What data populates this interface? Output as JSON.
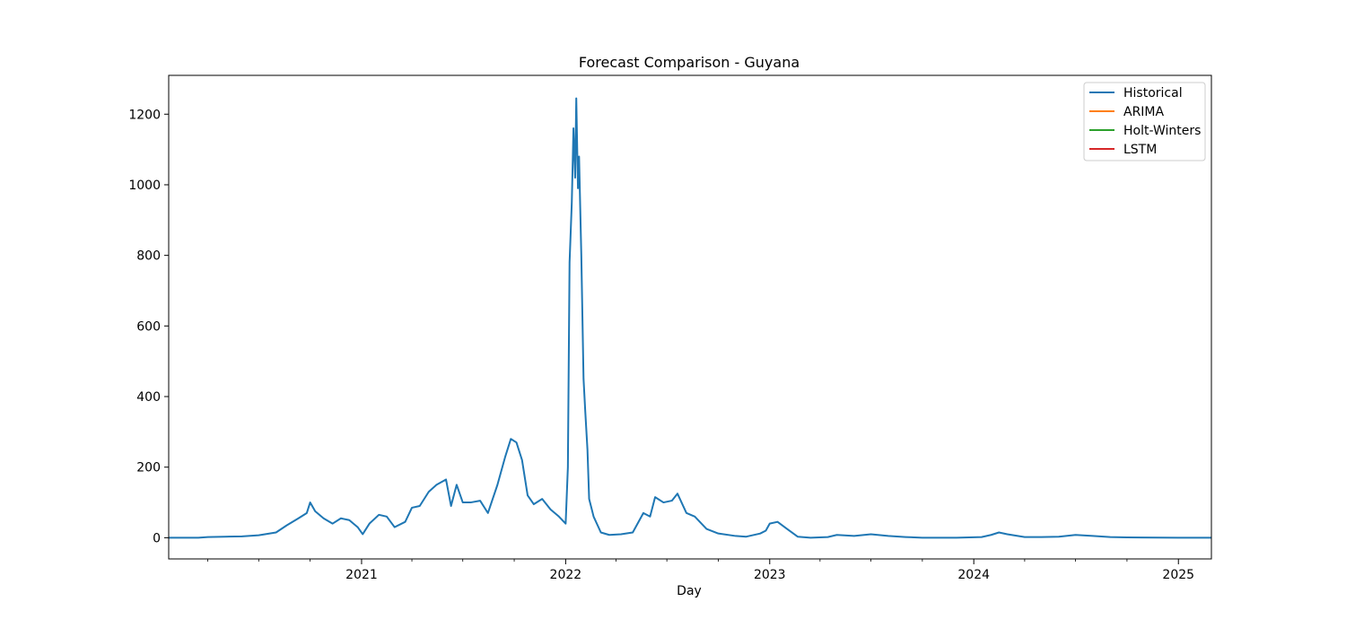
{
  "chart_data": {
    "type": "line",
    "title": "Forecast Comparison - Guyana",
    "xlabel": "Day",
    "ylabel": "",
    "x_axis_type": "date",
    "xlim": [
      "2020-01-22",
      "2025-03-01"
    ],
    "ylim": [
      -60,
      1310
    ],
    "y_ticks": [
      0,
      200,
      400,
      600,
      800,
      1000,
      1200
    ],
    "x_ticks": [
      {
        "date": "2021-01-01",
        "label": "2021"
      },
      {
        "date": "2022-01-01",
        "label": "2022"
      },
      {
        "date": "2023-01-01",
        "label": "2023"
      },
      {
        "date": "2024-01-01",
        "label": "2024"
      },
      {
        "date": "2025-01-01",
        "label": "2025"
      }
    ],
    "legend": {
      "position": "top-right"
    },
    "grid": false,
    "series": [
      {
        "name": "Historical",
        "color": "#1f77b4",
        "points": [
          [
            "2020-01-22",
            0
          ],
          [
            "2020-03-15",
            0
          ],
          [
            "2020-04-01",
            2
          ],
          [
            "2020-05-01",
            3
          ],
          [
            "2020-06-01",
            4
          ],
          [
            "2020-07-01",
            7
          ],
          [
            "2020-08-01",
            15
          ],
          [
            "2020-08-20",
            35
          ],
          [
            "2020-09-10",
            55
          ],
          [
            "2020-09-25",
            70
          ],
          [
            "2020-10-01",
            100
          ],
          [
            "2020-10-10",
            75
          ],
          [
            "2020-10-25",
            55
          ],
          [
            "2020-11-10",
            40
          ],
          [
            "2020-11-25",
            55
          ],
          [
            "2020-12-10",
            50
          ],
          [
            "2020-12-25",
            30
          ],
          [
            "2021-01-03",
            10
          ],
          [
            "2021-01-15",
            40
          ],
          [
            "2021-02-01",
            65
          ],
          [
            "2021-02-15",
            60
          ],
          [
            "2021-03-01",
            30
          ],
          [
            "2021-03-20",
            45
          ],
          [
            "2021-04-01",
            85
          ],
          [
            "2021-04-15",
            90
          ],
          [
            "2021-05-01",
            130
          ],
          [
            "2021-05-15",
            150
          ],
          [
            "2021-06-01",
            165
          ],
          [
            "2021-06-10",
            90
          ],
          [
            "2021-06-20",
            150
          ],
          [
            "2021-07-01",
            100
          ],
          [
            "2021-07-15",
            100
          ],
          [
            "2021-08-01",
            105
          ],
          [
            "2021-08-15",
            70
          ],
          [
            "2021-09-01",
            150
          ],
          [
            "2021-09-15",
            230
          ],
          [
            "2021-09-25",
            280
          ],
          [
            "2021-10-05",
            270
          ],
          [
            "2021-10-15",
            220
          ],
          [
            "2021-10-25",
            120
          ],
          [
            "2021-11-05",
            95
          ],
          [
            "2021-11-20",
            110
          ],
          [
            "2021-12-05",
            80
          ],
          [
            "2021-12-20",
            60
          ],
          [
            "2022-01-01",
            40
          ],
          [
            "2022-01-05",
            200
          ],
          [
            "2022-01-08",
            780
          ],
          [
            "2022-01-12",
            950
          ],
          [
            "2022-01-15",
            1160
          ],
          [
            "2022-01-18",
            1020
          ],
          [
            "2022-01-20",
            1245
          ],
          [
            "2022-01-23",
            990
          ],
          [
            "2022-01-25",
            1080
          ],
          [
            "2022-01-27",
            940
          ],
          [
            "2022-01-29",
            800
          ],
          [
            "2022-02-02",
            450
          ],
          [
            "2022-02-05",
            360
          ],
          [
            "2022-02-09",
            250
          ],
          [
            "2022-02-12",
            110
          ],
          [
            "2022-02-20",
            60
          ],
          [
            "2022-03-05",
            15
          ],
          [
            "2022-03-20",
            8
          ],
          [
            "2022-04-10",
            10
          ],
          [
            "2022-05-01",
            15
          ],
          [
            "2022-05-20",
            70
          ],
          [
            "2022-06-01",
            60
          ],
          [
            "2022-06-10",
            115
          ],
          [
            "2022-06-25",
            100
          ],
          [
            "2022-07-10",
            105
          ],
          [
            "2022-07-20",
            125
          ],
          [
            "2022-08-05",
            70
          ],
          [
            "2022-08-20",
            60
          ],
          [
            "2022-09-10",
            25
          ],
          [
            "2022-10-01",
            12
          ],
          [
            "2022-11-01",
            5
          ],
          [
            "2022-11-20",
            3
          ],
          [
            "2022-12-15",
            12
          ],
          [
            "2022-12-25",
            20
          ],
          [
            "2023-01-01",
            40
          ],
          [
            "2023-01-15",
            45
          ],
          [
            "2023-02-01",
            25
          ],
          [
            "2023-02-20",
            3
          ],
          [
            "2023-03-15",
            0
          ],
          [
            "2023-04-15",
            2
          ],
          [
            "2023-05-01",
            8
          ],
          [
            "2023-06-01",
            5
          ],
          [
            "2023-07-01",
            10
          ],
          [
            "2023-08-01",
            5
          ],
          [
            "2023-09-01",
            2
          ],
          [
            "2023-10-01",
            0
          ],
          [
            "2023-12-01",
            0
          ],
          [
            "2024-01-15",
            2
          ],
          [
            "2024-02-01",
            8
          ],
          [
            "2024-02-15",
            15
          ],
          [
            "2024-03-01",
            10
          ],
          [
            "2024-04-01",
            2
          ],
          [
            "2024-05-01",
            2
          ],
          [
            "2024-06-01",
            3
          ],
          [
            "2024-07-01",
            8
          ],
          [
            "2024-08-01",
            5
          ],
          [
            "2024-09-01",
            2
          ],
          [
            "2024-10-01",
            1
          ],
          [
            "2025-01-01",
            0
          ],
          [
            "2025-03-01",
            0
          ]
        ]
      },
      {
        "name": "ARIMA",
        "color": "#ff7f0e",
        "points": []
      },
      {
        "name": "Holt-Winters",
        "color": "#2ca02c",
        "points": []
      },
      {
        "name": "LSTM",
        "color": "#d62728",
        "points": []
      }
    ]
  }
}
